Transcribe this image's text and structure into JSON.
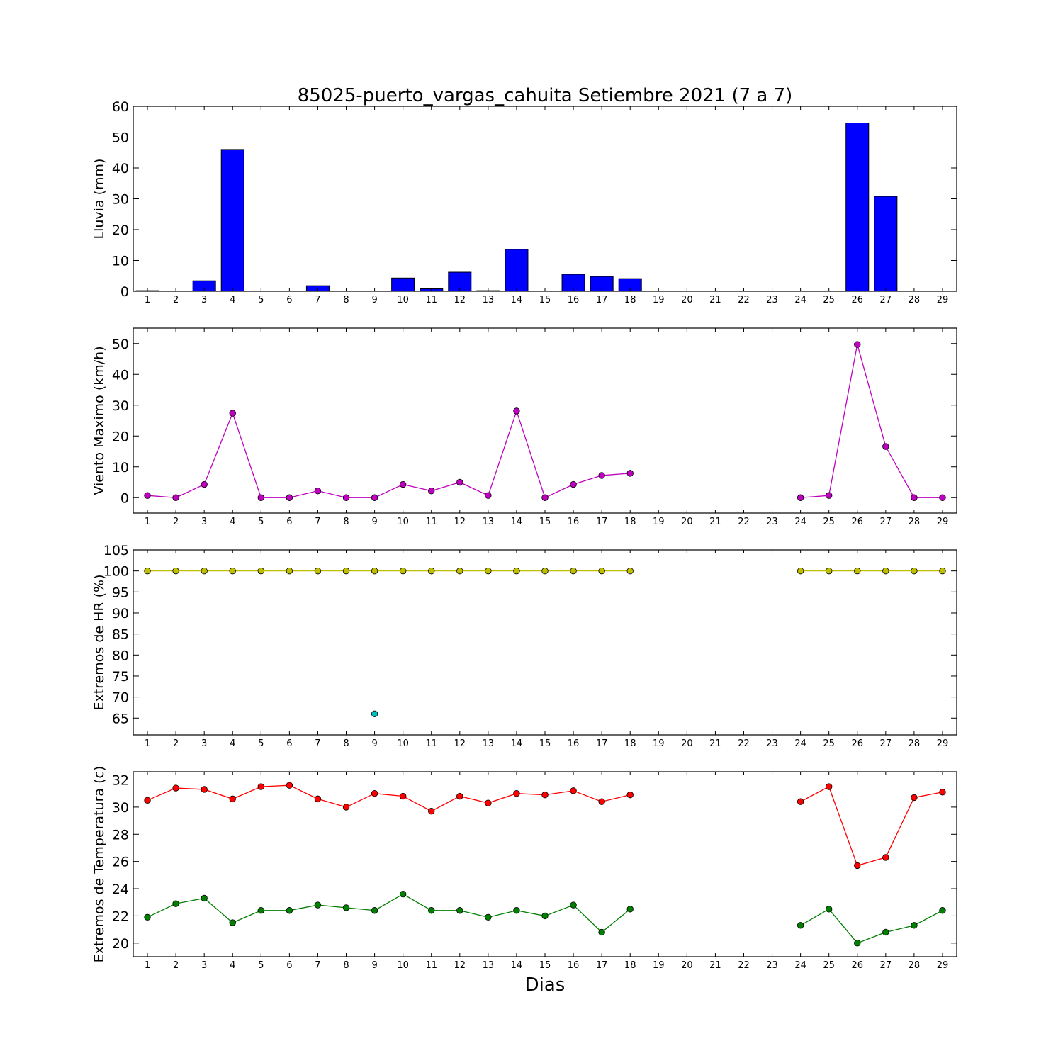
{
  "figure": {
    "title": "85025-puerto_vargas_cahuita Setiembre 2021  (7 a 7)",
    "xlabel": "Dias"
  },
  "chart_data": [
    {
      "id": "rain",
      "type": "bar",
      "ylabel": "Lluvia (mm)",
      "ylim": [
        0,
        60
      ],
      "yticks": [
        0,
        10,
        20,
        30,
        40,
        50,
        60
      ],
      "xlim": [
        0.5,
        29.5
      ],
      "categories": [
        "1",
        "2",
        "3",
        "4",
        "5",
        "6",
        "7",
        "8",
        "9",
        "10",
        "11",
        "12",
        "13",
        "14",
        "15",
        "16",
        "17",
        "18",
        "19",
        "20",
        "21",
        "22",
        "23",
        "24",
        "25",
        "26",
        "27",
        "28",
        "29"
      ],
      "series": [
        {
          "values": [
            0.2,
            0.0,
            3.4,
            46.0,
            0.0,
            0.0,
            1.8,
            0.0,
            0.0,
            4.3,
            0.8,
            6.2,
            0.2,
            13.6,
            0.0,
            5.5,
            4.8,
            4.1,
            null,
            null,
            null,
            null,
            null,
            0.0,
            0.1,
            54.6,
            30.8,
            0.0,
            0.0
          ],
          "color": "#0000ff"
        }
      ]
    },
    {
      "id": "wind",
      "type": "line",
      "ylabel": "Viento Maximo (km/h)",
      "ylim": [
        -5,
        55
      ],
      "yticks": [
        0,
        10,
        20,
        30,
        40,
        50
      ],
      "xlim": [
        0.5,
        29.5
      ],
      "categories": [
        "1",
        "2",
        "3",
        "4",
        "5",
        "6",
        "7",
        "8",
        "9",
        "10",
        "11",
        "12",
        "13",
        "14",
        "15",
        "16",
        "17",
        "18",
        "19",
        "20",
        "21",
        "22",
        "23",
        "24",
        "25",
        "26",
        "27",
        "28",
        "29"
      ],
      "series": [
        {
          "values": [
            0.7,
            0.0,
            4.3,
            27.4,
            0.0,
            0.0,
            2.2,
            0.0,
            0.0,
            4.3,
            2.2,
            5.0,
            0.7,
            28.1,
            0.0,
            4.3,
            7.2,
            7.9,
            null,
            null,
            null,
            null,
            null,
            0.0,
            0.7,
            49.7,
            16.6,
            0.0,
            0.0
          ],
          "color": "#bf00bf"
        }
      ]
    },
    {
      "id": "hr",
      "type": "line",
      "ylabel": "Extremos de HR (%)",
      "ylim": [
        61,
        105
      ],
      "yticks": [
        65,
        70,
        75,
        80,
        85,
        90,
        95,
        100,
        105
      ],
      "xlim": [
        0.5,
        29.5
      ],
      "categories": [
        "1",
        "2",
        "3",
        "4",
        "5",
        "6",
        "7",
        "8",
        "9",
        "10",
        "11",
        "12",
        "13",
        "14",
        "15",
        "16",
        "17",
        "18",
        "19",
        "20",
        "21",
        "22",
        "23",
        "24",
        "25",
        "26",
        "27",
        "28",
        "29"
      ],
      "series": [
        {
          "values": [
            100,
            100,
            100,
            100,
            100,
            100,
            100,
            100,
            100,
            100,
            100,
            100,
            100,
            100,
            100,
            100,
            100,
            100,
            null,
            null,
            null,
            null,
            null,
            100,
            100,
            100,
            100,
            100,
            100
          ],
          "color": "#bfbf00"
        },
        {
          "values": [
            null,
            null,
            null,
            null,
            null,
            null,
            null,
            null,
            66,
            null,
            null,
            null,
            null,
            null,
            null,
            null,
            null,
            null,
            null,
            null,
            null,
            null,
            null,
            null,
            null,
            null,
            null,
            null,
            null
          ],
          "color": "#00bfbf"
        }
      ]
    },
    {
      "id": "temp",
      "type": "line",
      "ylabel": "Extremos de Temperatura (c)",
      "ylim": [
        19,
        32.6
      ],
      "yticks": [
        20,
        22,
        24,
        26,
        28,
        30,
        32
      ],
      "xlim": [
        0.5,
        29.5
      ],
      "categories": [
        "1",
        "2",
        "3",
        "4",
        "5",
        "6",
        "7",
        "8",
        "9",
        "10",
        "11",
        "12",
        "13",
        "14",
        "15",
        "16",
        "17",
        "18",
        "19",
        "20",
        "21",
        "22",
        "23",
        "24",
        "25",
        "26",
        "27",
        "28",
        "29"
      ],
      "series": [
        {
          "values": [
            30.5,
            31.4,
            31.3,
            30.6,
            31.5,
            31.6,
            30.6,
            30.0,
            31.0,
            30.8,
            29.7,
            30.8,
            30.3,
            31.0,
            30.9,
            31.2,
            30.4,
            30.9,
            null,
            null,
            null,
            null,
            null,
            30.4,
            31.5,
            25.7,
            26.3,
            30.7,
            31.1
          ],
          "color": "#ff0000"
        },
        {
          "values": [
            21.9,
            22.9,
            23.3,
            21.5,
            22.4,
            22.4,
            22.8,
            22.6,
            22.4,
            23.6,
            22.4,
            22.4,
            21.9,
            22.4,
            22.0,
            22.8,
            20.8,
            22.5,
            null,
            null,
            null,
            null,
            null,
            21.3,
            22.5,
            20.0,
            20.8,
            21.3,
            22.4
          ],
          "color": "#007f00"
        }
      ]
    }
  ]
}
